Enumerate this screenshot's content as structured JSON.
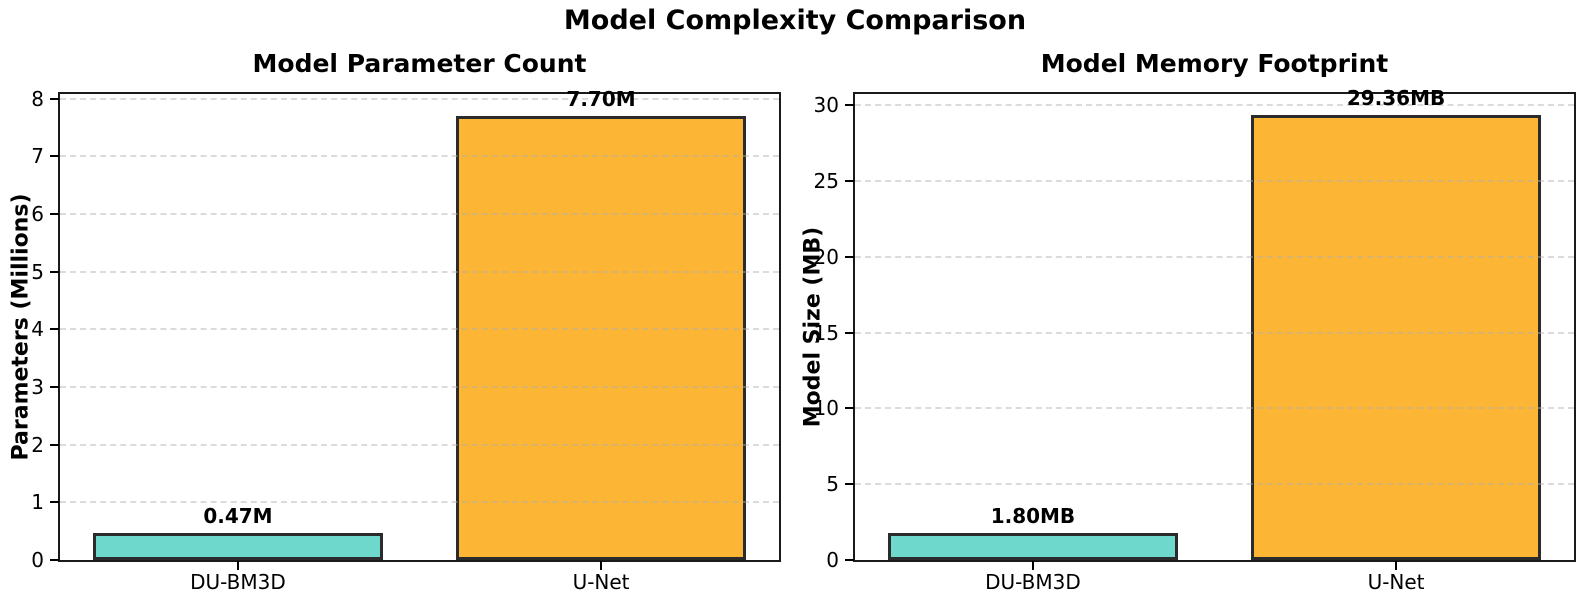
{
  "figure": {
    "title": "Model Complexity Comparison",
    "background": "#ffffff"
  },
  "style": {
    "bar_edge_color": "#2b2b2b",
    "grid_color": "#afafaf",
    "grid_style": "dashed",
    "axis_color": "#000000",
    "teal": "#6ed8cc",
    "orange": "#fcb535"
  },
  "chart_data": [
    {
      "type": "bar",
      "title": "Model Parameter Count",
      "ylabel": "Parameters (Millions)",
      "xlabel": "",
      "categories": [
        "DU-BM3D",
        "U-Net"
      ],
      "values": [
        0.47,
        7.7
      ],
      "value_labels": [
        "0.47M",
        "7.70M"
      ],
      "bar_colors": [
        "#6ed8cc",
        "#fcb535"
      ],
      "ylim": [
        0,
        8.08
      ],
      "yticks": [
        0,
        1,
        2,
        3,
        4,
        5,
        6,
        7,
        8
      ],
      "grid": "horizontal dashed",
      "legend": "none"
    },
    {
      "type": "bar",
      "title": "Model Memory Footprint",
      "ylabel": "Model Size (MB)",
      "xlabel": "",
      "categories": [
        "DU-BM3D",
        "U-Net"
      ],
      "values": [
        1.8,
        29.36
      ],
      "value_labels": [
        "1.80MB",
        "29.36MB"
      ],
      "bar_colors": [
        "#6ed8cc",
        "#fcb535"
      ],
      "ylim": [
        0,
        30.75
      ],
      "yticks": [
        0,
        5,
        10,
        15,
        20,
        25,
        30
      ],
      "grid": "horizontal dashed",
      "legend": "none"
    }
  ]
}
